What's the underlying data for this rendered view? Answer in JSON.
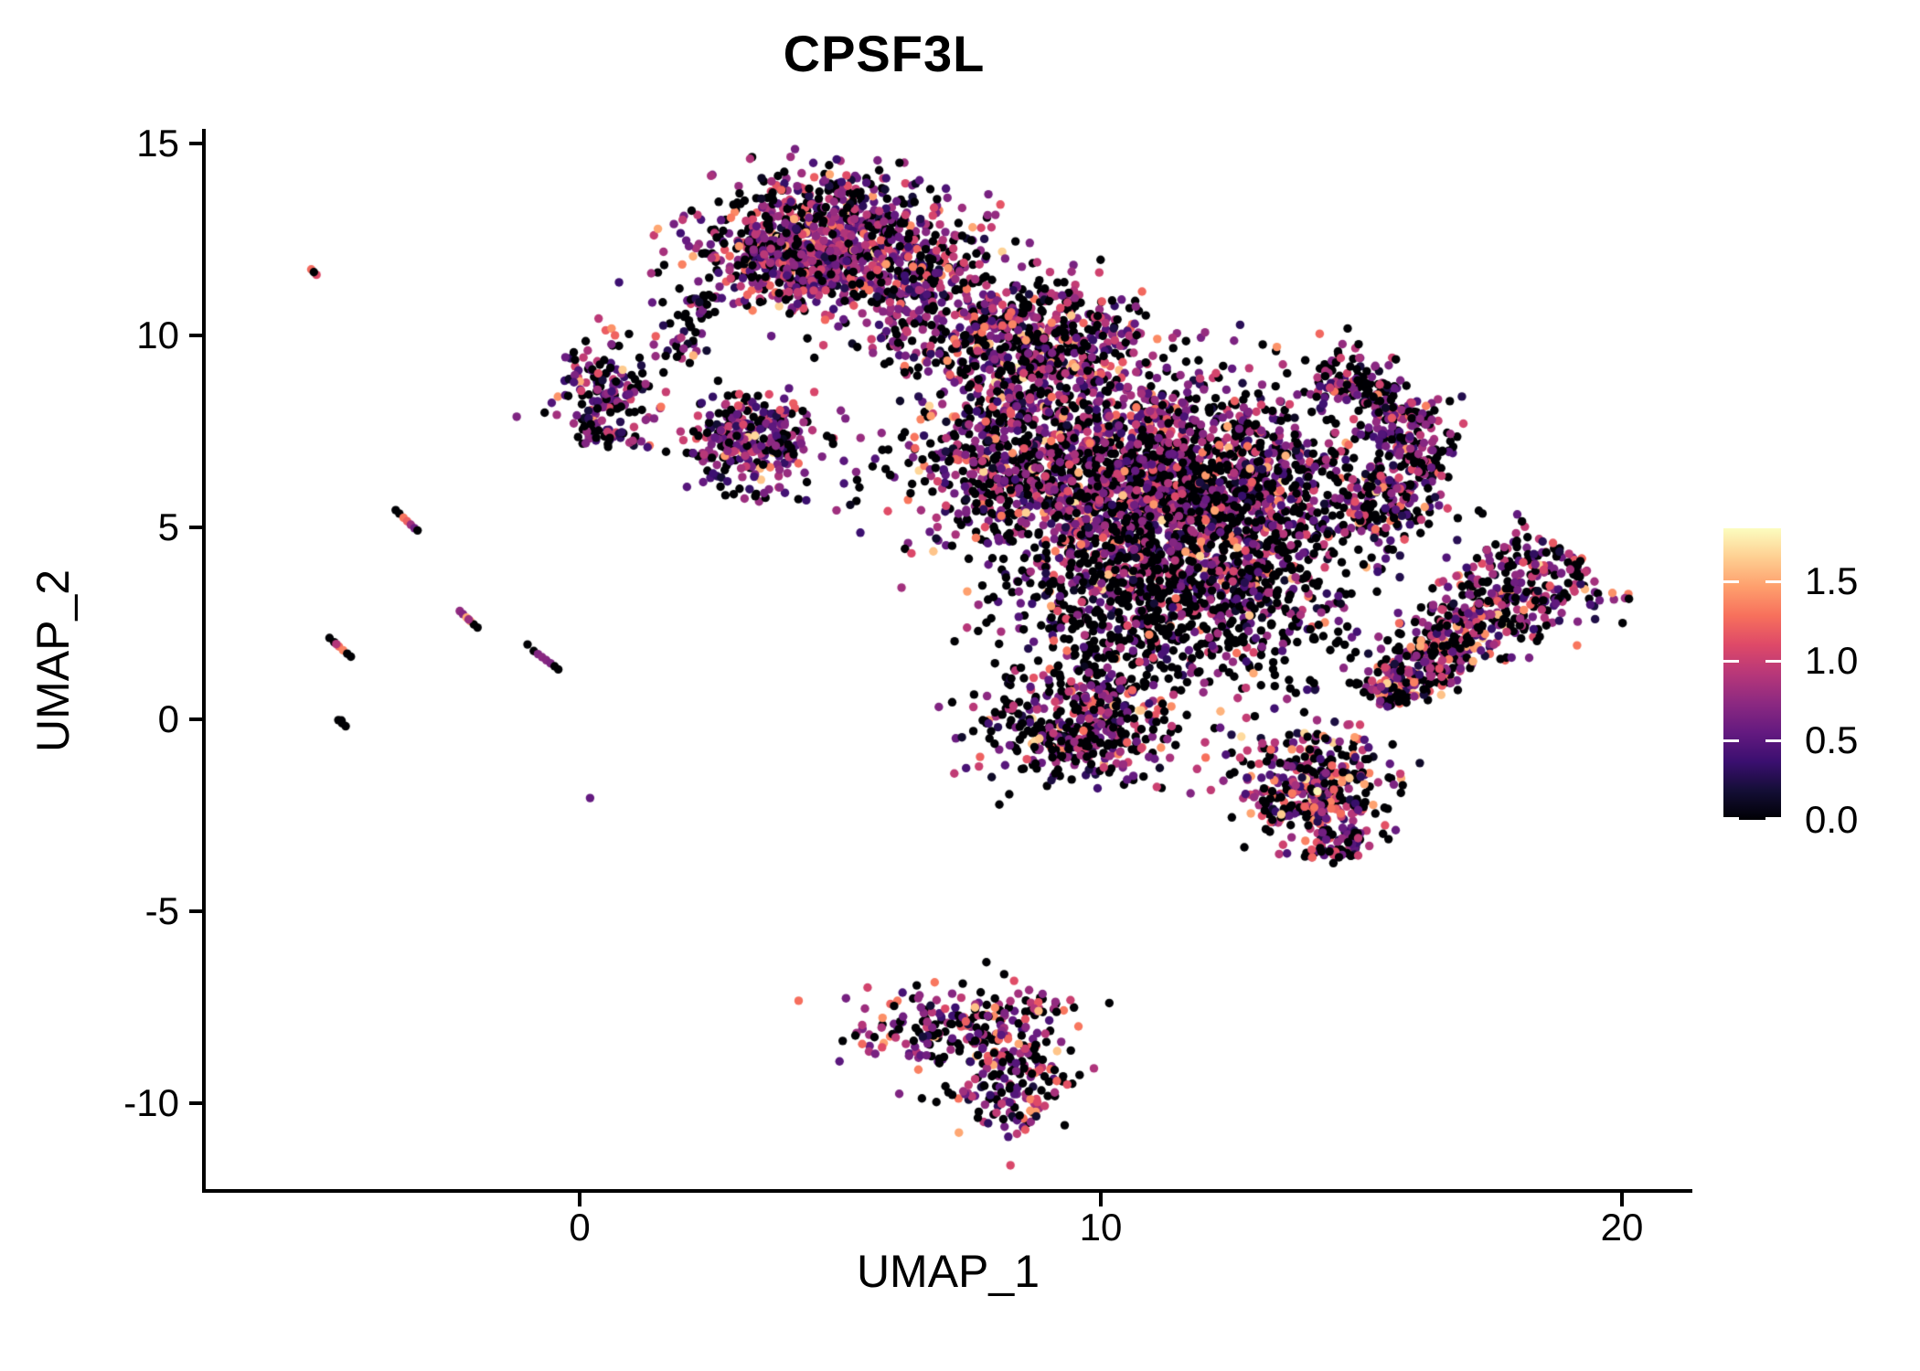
{
  "title": "CPSF3L",
  "axes": {
    "x": {
      "label": "UMAP_1",
      "ticks": [
        {
          "label": "0",
          "value": 0
        },
        {
          "label": "10",
          "value": 10
        },
        {
          "label": "20",
          "value": 20
        }
      ],
      "range": [
        -7.2,
        21.3
      ]
    },
    "y": {
      "label": "UMAP_2",
      "ticks": [
        {
          "label": "15",
          "value": 15
        },
        {
          "label": "10",
          "value": 10
        },
        {
          "label": "5",
          "value": 5
        },
        {
          "label": "0",
          "value": 0
        },
        {
          "label": "-5",
          "value": -5
        },
        {
          "label": "-10",
          "value": -10
        }
      ],
      "range": [
        -12.3,
        15.35
      ]
    }
  },
  "legend": {
    "ticks": [
      {
        "label": "1.5",
        "value": 1.5
      },
      {
        "label": "1.0",
        "value": 1.0
      },
      {
        "label": "0.5",
        "value": 0.5
      },
      {
        "label": "0.0",
        "value": 0.0
      }
    ],
    "vmin": 0,
    "vmax": 1.83,
    "colormap": "magma",
    "colormap_stops": [
      "#000004",
      "#140e36",
      "#3b0f70",
      "#641a80",
      "#8c2981",
      "#b73779",
      "#de4968",
      "#f7705c",
      "#fe9f6d",
      "#fecf92",
      "#fcfdbf"
    ]
  },
  "chart_data": {
    "type": "scatter",
    "title": "CPSF3L",
    "xlabel": "UMAP_1",
    "ylabel": "UMAP_2",
    "xlim": [
      -7.2,
      21.3
    ],
    "ylim": [
      -12.3,
      15.35
    ],
    "grid": false,
    "legend_position": "right",
    "color_scale": {
      "name": "magma",
      "domain": [
        0,
        1.83
      ],
      "legend_ticks": [
        0,
        0.5,
        1.0,
        1.5
      ]
    },
    "point_radius_px": 4.7,
    "seed": 20240608,
    "clusters": [
      {
        "name": "top-cluster-core",
        "kind": "gauss",
        "cx": 4.55,
        "cy": 12.15,
        "sx": 1.15,
        "sy": 0.72,
        "n": 850,
        "expr": [
          0.24,
          0.72,
          0.26,
          0.05
        ]
      },
      {
        "name": "top-cluster-halo",
        "kind": "gauss",
        "cx": 4.9,
        "cy": 13.6,
        "sx": 1.05,
        "sy": 0.5,
        "n": 130,
        "expr": [
          0.4,
          0.62,
          0.28,
          0.03
        ]
      },
      {
        "name": "top-cluster-left-trail",
        "kind": "line",
        "x1": 2.35,
        "y1": 11.0,
        "x2": 1.7,
        "y2": 9.4,
        "w1": 0.22,
        "w2": 0.22,
        "n": 45,
        "expr": [
          0.45,
          0.6,
          0.28,
          0.02
        ]
      },
      {
        "name": "top-cluster-right",
        "kind": "gauss",
        "cx": 6.4,
        "cy": 11.4,
        "sx": 0.85,
        "sy": 0.95,
        "n": 230,
        "expr": [
          0.38,
          0.68,
          0.3,
          0.05
        ]
      },
      {
        "name": "top-right-sparse",
        "kind": "gauss",
        "cx": 7.7,
        "cy": 10.2,
        "sx": 0.55,
        "sy": 1.0,
        "n": 55,
        "expr": [
          0.5,
          0.6,
          0.3,
          0.03
        ]
      },
      {
        "name": "left-small-cluster",
        "kind": "gauss",
        "cx": 0.55,
        "cy": 8.6,
        "sx": 0.5,
        "sy": 0.65,
        "n": 150,
        "expr": [
          0.35,
          0.68,
          0.3,
          0.07
        ]
      },
      {
        "name": "left-small-hook",
        "kind": "line",
        "x1": 0.0,
        "y1": 7.5,
        "x2": 1.35,
        "y2": 7.15,
        "w1": 0.16,
        "w2": 0.16,
        "n": 32,
        "expr": [
          0.45,
          0.65,
          0.3,
          0.05
        ]
      },
      {
        "name": "mid-left-cluster",
        "kind": "gauss",
        "cx": 3.3,
        "cy": 7.35,
        "sx": 0.6,
        "sy": 0.55,
        "n": 280,
        "expr": [
          0.3,
          0.7,
          0.28,
          0.07
        ]
      },
      {
        "name": "mid-left-below-sparse",
        "kind": "gauss",
        "cx": 3.3,
        "cy": 5.95,
        "sx": 0.45,
        "sy": 0.3,
        "n": 16,
        "expr": [
          0.5,
          0.6,
          0.25,
          0.02
        ]
      },
      {
        "name": "between-sparse",
        "kind": "gauss",
        "cx": 5.6,
        "cy": 6.6,
        "sx": 0.7,
        "sy": 0.9,
        "n": 30,
        "expr": [
          0.55,
          0.6,
          0.28,
          0.02
        ]
      },
      {
        "name": "main-mass-upper-band",
        "kind": "gauss",
        "cx": 8.7,
        "cy": 9.6,
        "sx": 1.15,
        "sy": 0.85,
        "n": 680,
        "expr": [
          0.36,
          0.76,
          0.32,
          0.09
        ]
      },
      {
        "name": "main-mass-left-lobe",
        "kind": "gauss",
        "cx": 8.2,
        "cy": 6.7,
        "sx": 0.8,
        "sy": 1.1,
        "n": 460,
        "expr": [
          0.44,
          0.7,
          0.3,
          0.05
        ]
      },
      {
        "name": "main-mass-core",
        "kind": "gauss",
        "cx": 11.5,
        "cy": 5.8,
        "sx": 1.65,
        "sy": 1.5,
        "n": 2300,
        "expr": [
          0.42,
          0.73,
          0.31,
          0.07
        ]
      },
      {
        "name": "main-mass-crescent",
        "kind": "arc",
        "cx": 13.7,
        "cy": 6.9,
        "r": 2.3,
        "a1": -55,
        "a2": 78,
        "w": 0.42,
        "n": 430,
        "expr": [
          0.44,
          0.7,
          0.3,
          0.05
        ]
      },
      {
        "name": "main-mass-lower-sparse",
        "kind": "gauss",
        "cx": 10.9,
        "cy": 2.7,
        "sx": 1.3,
        "sy": 1.15,
        "n": 520,
        "expr": [
          0.66,
          0.6,
          0.3,
          0.03
        ]
      },
      {
        "name": "main-mass-bottom-lobe",
        "kind": "gauss",
        "cx": 9.6,
        "cy": -0.2,
        "sx": 1.0,
        "sy": 0.75,
        "n": 430,
        "expr": [
          0.44,
          0.73,
          0.32,
          0.08
        ]
      },
      {
        "name": "main-mass-right-sparse",
        "kind": "gauss",
        "cx": 13.4,
        "cy": 3.2,
        "sx": 0.85,
        "sy": 1.15,
        "n": 170,
        "expr": [
          0.55,
          0.62,
          0.3,
          0.03
        ]
      },
      {
        "name": "lower-right-pear",
        "kind": "gauss",
        "cx": 14.1,
        "cy": -1.8,
        "sx": 0.75,
        "sy": 0.8,
        "n": 380,
        "expr": [
          0.4,
          0.75,
          0.33,
          0.09
        ]
      },
      {
        "name": "lower-right-pear-tail",
        "kind": "line",
        "x1": 14.4,
        "y1": -2.9,
        "x2": 14.8,
        "y2": -3.7,
        "w1": 0.3,
        "w2": 0.18,
        "n": 55,
        "expr": [
          0.42,
          0.7,
          0.3,
          0.06
        ]
      },
      {
        "name": "right-arm",
        "kind": "line",
        "x1": 15.25,
        "y1": 0.55,
        "x2": 19.0,
        "y2": 4.35,
        "w1": 0.26,
        "w2": 0.8,
        "n": 640,
        "expr": [
          0.36,
          0.78,
          0.33,
          0.1
        ]
      },
      {
        "name": "bottom-cluster-top",
        "kind": "gauss",
        "cx": 7.2,
        "cy": -8.05,
        "sx": 0.95,
        "sy": 0.5,
        "n": 220,
        "expr": [
          0.36,
          0.74,
          0.32,
          0.09
        ]
      },
      {
        "name": "bottom-cluster-lobe",
        "kind": "gauss",
        "cx": 8.3,
        "cy": -9.6,
        "sx": 0.55,
        "sy": 0.75,
        "n": 160,
        "expr": [
          0.36,
          0.74,
          0.32,
          0.09
        ]
      },
      {
        "name": "bottom-cluster-tip",
        "kind": "line",
        "x1": 8.7,
        "y1": -7.3,
        "x2": 9.3,
        "y2": -7.5,
        "w1": 0.12,
        "w2": 0.12,
        "n": 12,
        "expr": [
          0.4,
          0.7,
          0.3,
          0.05
        ]
      }
    ],
    "isolated_points": [
      [
        -5.15,
        11.72,
        1.25
      ],
      [
        -5.05,
        11.58,
        1.1
      ],
      [
        -5.1,
        11.65,
        0
      ],
      [
        -3.53,
        5.45,
        0
      ],
      [
        -3.46,
        5.36,
        0
      ],
      [
        -3.38,
        5.25,
        1.3
      ],
      [
        -3.31,
        5.16,
        1.2
      ],
      [
        -3.24,
        5.07,
        0.8
      ],
      [
        -3.17,
        4.98,
        0.6
      ],
      [
        -3.11,
        4.92,
        0
      ],
      [
        -2.3,
        2.82,
        0.75
      ],
      [
        -2.24,
        2.74,
        0.7
      ],
      [
        -2.17,
        2.65,
        1.5
      ],
      [
        -2.1,
        2.56,
        1.4
      ],
      [
        -2.03,
        2.47,
        0
      ],
      [
        -1.96,
        2.39,
        0
      ],
      [
        -2.13,
        2.6,
        0.8
      ],
      [
        -4.8,
        2.12,
        0
      ],
      [
        -4.71,
        2.01,
        0
      ],
      [
        -4.62,
        1.9,
        1.25
      ],
      [
        -4.54,
        1.8,
        1.35
      ],
      [
        -4.46,
        1.71,
        0
      ],
      [
        -4.39,
        1.63,
        0
      ],
      [
        -4.67,
        1.96,
        0.9
      ],
      [
        -1.0,
        1.95,
        0
      ],
      [
        -0.88,
        1.78,
        0
      ],
      [
        -0.8,
        1.7,
        0.68
      ],
      [
        -0.72,
        1.62,
        0.72
      ],
      [
        -0.64,
        1.54,
        0.7
      ],
      [
        -0.56,
        1.46,
        0.66
      ],
      [
        -0.48,
        1.38,
        0
      ],
      [
        -0.41,
        1.3,
        0
      ],
      [
        -4.63,
        -0.02,
        0
      ],
      [
        -4.56,
        -0.1,
        0
      ],
      [
        -4.49,
        -0.18,
        0
      ],
      [
        -4.57,
        -0.03,
        0
      ],
      [
        0.2,
        -2.05,
        0.55
      ],
      [
        1.46,
        9.98,
        1.2
      ],
      [
        1.56,
        8.14,
        1.3
      ]
    ]
  }
}
